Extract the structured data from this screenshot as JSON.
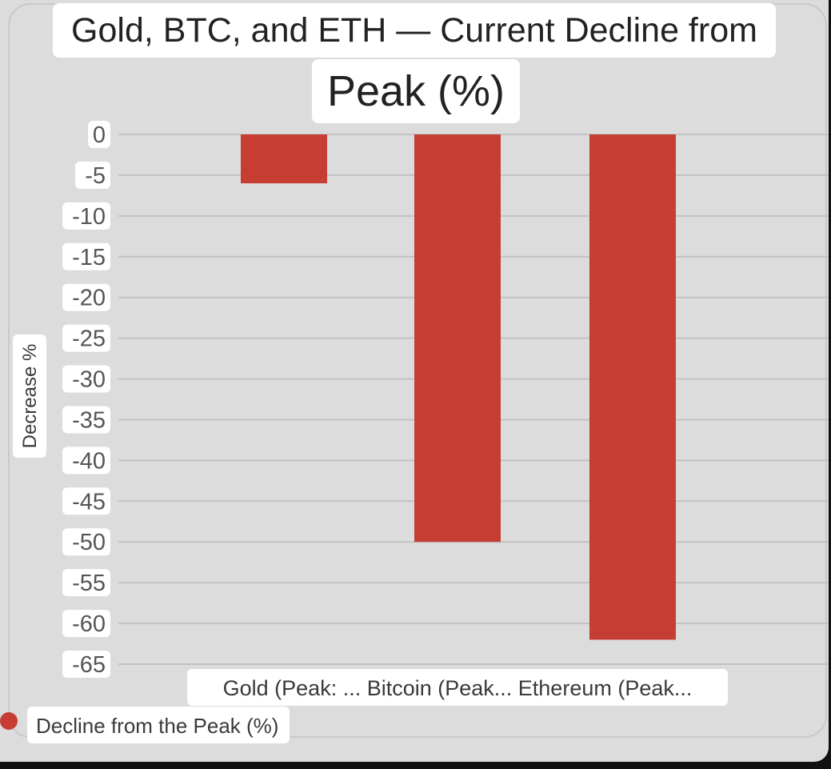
{
  "chart_data": {
    "type": "bar",
    "title_line1": "Gold, BTC, and ETH — Current Decline from",
    "title_line2": "Peak (%)",
    "ylabel": "Decrease %",
    "xlabel": "",
    "categories": [
      "Gold (Peak: ...",
      "Bitcoin (Peak...",
      "Ethereum (Peak..."
    ],
    "x_axis_label_text": "Gold (Peak: ... Bitcoin (Peak... Ethereum (Peak...",
    "series": [
      {
        "name": "Decline from the Peak (%)",
        "values": [
          -6,
          -50,
          -62
        ],
        "color": "#c63e33"
      }
    ],
    "ylim": [
      -65,
      0
    ],
    "yticks": [
      0,
      -5,
      -10,
      -15,
      -20,
      -25,
      -30,
      -35,
      -40,
      -45,
      -50,
      -55,
      -60,
      -65
    ],
    "grid": true,
    "legend_position": "bottom-left"
  }
}
